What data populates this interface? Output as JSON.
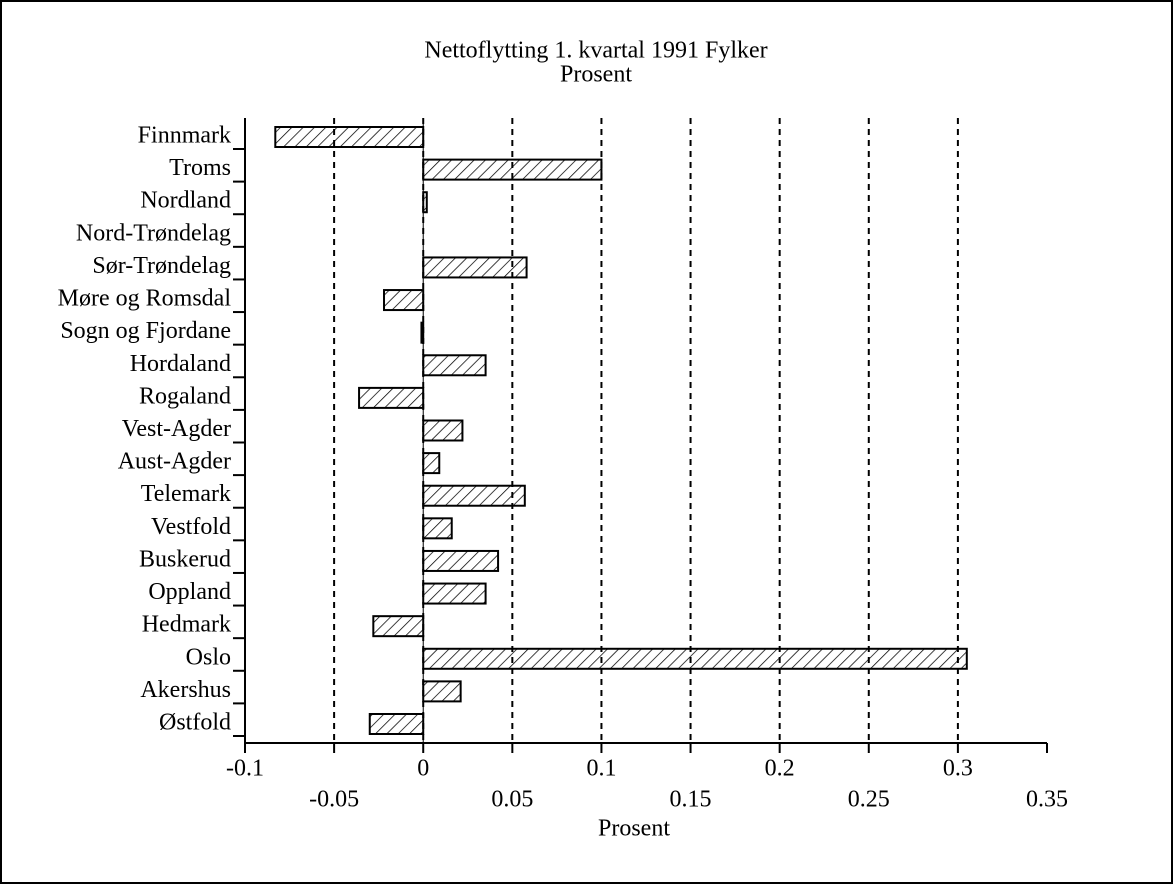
{
  "chart_data": {
    "type": "bar",
    "orientation": "horizontal",
    "title": "Nettoflytting 1. kvartal 1991 Fylker",
    "subtitle": "Prosent",
    "x_label": "Prosent",
    "categories": [
      "Finnmark",
      "Troms",
      "Nordland",
      "Nord-Trøndelag",
      "Sør-Trøndelag",
      "Møre og Romsdal",
      "Sogn og Fjordane",
      "Hordaland",
      "Rogaland",
      "Vest-Agder",
      "Aust-Agder",
      "Telemark",
      "Vestfold",
      "Buskerud",
      "Oppland",
      "Hedmark",
      "Oslo",
      "Akershus",
      "Østfold"
    ],
    "values": [
      -0.083,
      0.1,
      0.002,
      0,
      0.058,
      -0.022,
      -0.001,
      0.035,
      -0.036,
      0.022,
      0.009,
      0.057,
      0.016,
      0.042,
      0.035,
      -0.028,
      0.305,
      0.021,
      -0.03
    ],
    "color": "#000000",
    "xlim": [
      -0.1,
      0.35
    ],
    "xticks": [
      -0.1,
      -0.05,
      0,
      0.05,
      0.1,
      0.15,
      0.2,
      0.25,
      0.3,
      0.35
    ],
    "grid": true
  }
}
